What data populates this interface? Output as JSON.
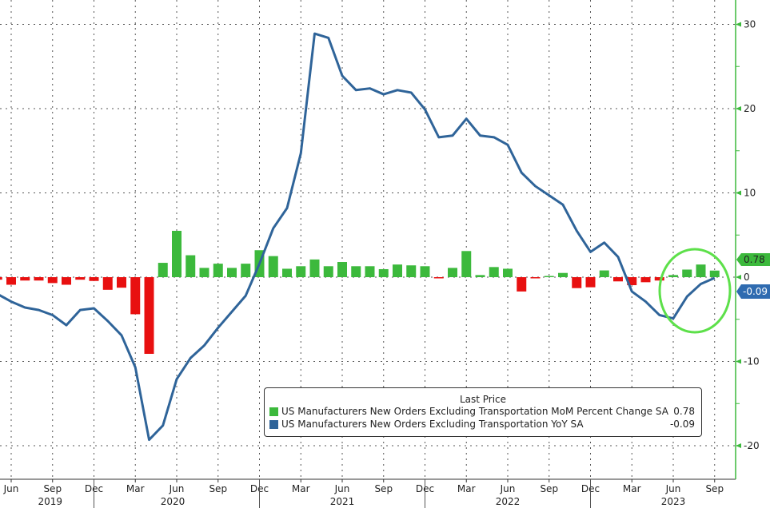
{
  "chart_data": {
    "type": "bar+line",
    "title": "",
    "legend_title": "Last Price",
    "legend_position": "bottom-right",
    "categories": [
      "May 2019",
      "Jun 2019",
      "Jul 2019",
      "Aug 2019",
      "Sep 2019",
      "Oct 2019",
      "Nov 2019",
      "Dec 2019",
      "Jan 2020",
      "Feb 2020",
      "Mar 2020",
      "Apr 2020",
      "May 2020",
      "Jun 2020",
      "Jul 2020",
      "Aug 2020",
      "Sep 2020",
      "Oct 2020",
      "Nov 2020",
      "Dec 2020",
      "Jan 2021",
      "Feb 2021",
      "Mar 2021",
      "Apr 2021",
      "May 2021",
      "Jun 2021",
      "Jul 2021",
      "Aug 2021",
      "Sep 2021",
      "Oct 2021",
      "Nov 2021",
      "Dec 2021",
      "Jan 2022",
      "Feb 2022",
      "Mar 2022",
      "Apr 2022",
      "May 2022",
      "Jun 2022",
      "Jul 2022",
      "Aug 2022",
      "Sep 2022",
      "Oct 2022",
      "Nov 2022",
      "Dec 2022",
      "Jan 2023",
      "Feb 2023",
      "Mar 2023",
      "Apr 2023",
      "May 2023",
      "Jun 2023",
      "Jul 2023",
      "Aug 2023",
      "Sep 2023"
    ],
    "series": [
      {
        "name": "US Manufacturers New Orders Excluding Transportation MoM Percent Change SA",
        "type": "bar",
        "last": "0.78",
        "color_pos": "#3cb93c",
        "color_neg": "#e81010",
        "values": [
          -0.3,
          -0.9,
          -0.4,
          -0.4,
          -0.7,
          -0.9,
          -0.3,
          -0.45,
          -1.5,
          -1.25,
          -4.4,
          -9.1,
          1.7,
          5.5,
          2.6,
          1.1,
          1.6,
          1.1,
          1.6,
          3.2,
          2.5,
          1.0,
          1.3,
          2.1,
          1.3,
          1.8,
          1.3,
          1.3,
          0.95,
          1.5,
          1.4,
          1.3,
          -0.05,
          1.1,
          3.1,
          0.25,
          1.2,
          1.0,
          -1.7,
          -0.05,
          0.0,
          0.5,
          -1.3,
          -1.2,
          0.8,
          -0.5,
          -0.95,
          -0.6,
          -0.4,
          0.25,
          0.9,
          1.5,
          0.78
        ]
      },
      {
        "name": "US Manufacturers New Orders Excluding Transportation YoY SA",
        "type": "line",
        "last": "-0.09",
        "color": "#2f6499",
        "values": [
          -2.0,
          -2.9,
          -3.6,
          -3.9,
          -4.5,
          -5.7,
          -3.9,
          -3.7,
          -5.2,
          -6.9,
          -10.7,
          -19.3,
          -17.6,
          -12.1,
          -9.6,
          -8.1,
          -6.0,
          -4.1,
          -2.2,
          1.6,
          5.8,
          8.2,
          14.7,
          28.9,
          28.4,
          23.9,
          22.2,
          22.4,
          21.7,
          22.2,
          21.9,
          19.9,
          16.6,
          16.8,
          18.8,
          16.8,
          16.6,
          15.7,
          12.4,
          10.8,
          9.7,
          8.6,
          5.5,
          3.0,
          4.1,
          2.4,
          -1.7,
          -2.9,
          -4.5,
          -4.9,
          -2.3,
          -0.8,
          -0.09
        ]
      }
    ],
    "y_axis": {
      "position": "right",
      "ylim": [
        -24,
        33
      ],
      "ticks": [
        "30",
        "20",
        "10",
        "0",
        "-10",
        "-20"
      ],
      "tick_values": [
        30,
        20,
        10,
        0,
        -10,
        -20
      ]
    },
    "x_axis": {
      "month_ticks": [
        "Jun",
        "Sep",
        "Dec",
        "Mar",
        "Jun",
        "Sep",
        "Dec",
        "Mar",
        "Jun",
        "Sep",
        "Dec",
        "Mar",
        "Jun",
        "Sep",
        "Dec",
        "Mar",
        "Jun",
        "Sep"
      ],
      "years": [
        "2019",
        "2020",
        "2021",
        "2022",
        "2023"
      ]
    },
    "grid": true
  }
}
